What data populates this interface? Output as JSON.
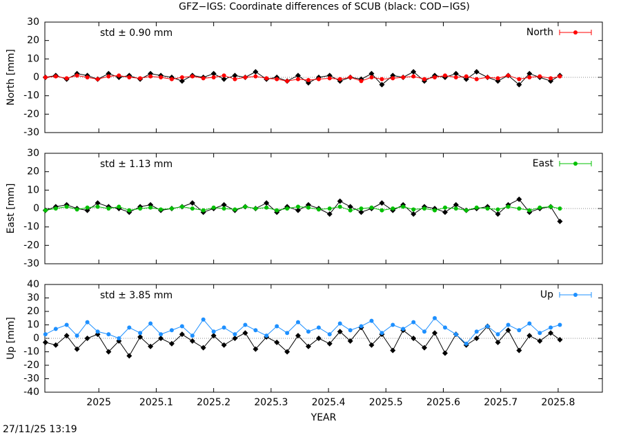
{
  "title": "GFZ−IGS: Coordinate differences of SCUB (black: COD−IGS)",
  "footer": "27/11/25 13:19",
  "chart_data": [
    {
      "type": "line",
      "ylabel": "North [mm]",
      "annotation": "std ± 0.90 mm",
      "xlim": [
        2024.906,
        2025.877
      ],
      "xticks": [
        2025,
        2025.1,
        2025.2,
        2025.3,
        2025.4,
        2025.5,
        2025.6,
        2025.7,
        2025.8
      ],
      "ylim": [
        -30,
        30
      ],
      "yticks": [
        -30,
        -20,
        -10,
        0,
        10,
        20,
        30
      ],
      "legend": "top-right",
      "x": [
        2024.907,
        2024.925,
        2024.944,
        2024.962,
        2024.98,
        2024.998,
        2025.017,
        2025.035,
        2025.053,
        2025.072,
        2025.09,
        2025.108,
        2025.127,
        2025.145,
        2025.163,
        2025.182,
        2025.2,
        2025.218,
        2025.237,
        2025.255,
        2025.273,
        2025.292,
        2025.31,
        2025.328,
        2025.347,
        2025.365,
        2025.383,
        2025.402,
        2025.42,
        2025.438,
        2025.457,
        2025.475,
        2025.493,
        2025.512,
        2025.53,
        2025.548,
        2025.567,
        2025.585,
        2025.603,
        2025.622,
        2025.64,
        2025.658,
        2025.677,
        2025.695,
        2025.713,
        2025.732,
        2025.75,
        2025.768,
        2025.787,
        2025.803
      ],
      "series": [
        {
          "color": "#000000",
          "marker": "diamond",
          "values": [
            0,
            1,
            -1,
            2,
            1,
            -1,
            2,
            0,
            1,
            -1,
            2,
            1,
            0,
            -2,
            1,
            0,
            2,
            -1,
            1,
            0,
            3,
            -1,
            0,
            -2,
            1,
            -3,
            0,
            1,
            -2,
            0,
            -1,
            2,
            -4,
            1,
            0,
            3,
            -2,
            1,
            0,
            2,
            -1,
            3,
            0,
            -2,
            1,
            -4,
            2,
            0,
            -2,
            1
          ]
        },
        {
          "name": "North",
          "color": "#ff0000",
          "marker": "circle",
          "values": [
            0,
            0.5,
            -0.5,
            1,
            0,
            -1,
            0.5,
            1,
            0,
            -0.5,
            0.5,
            0,
            -1,
            0,
            0.5,
            -0.5,
            0,
            1,
            -1,
            0,
            0.5,
            -0.5,
            -1,
            -2,
            -1,
            -1.5,
            -1,
            -0.5,
            -1,
            0,
            -2,
            0,
            -1,
            -0.5,
            0,
            0.5,
            -1,
            0,
            1,
            0,
            0.5,
            -1,
            0,
            -0.5,
            1,
            -1,
            0,
            0.5,
            -0.5,
            0.5
          ]
        }
      ]
    },
    {
      "type": "line",
      "ylabel": "East [mm]",
      "annotation": "std ± 1.13 mm",
      "xlim": [
        2024.906,
        2025.877
      ],
      "xticks": [
        2025,
        2025.1,
        2025.2,
        2025.3,
        2025.4,
        2025.5,
        2025.6,
        2025.7,
        2025.8
      ],
      "ylim": [
        -30,
        30
      ],
      "yticks": [
        -30,
        -20,
        -10,
        0,
        10,
        20,
        30
      ],
      "legend": "top-right",
      "x": [
        2024.907,
        2024.925,
        2024.944,
        2024.962,
        2024.98,
        2024.998,
        2025.017,
        2025.035,
        2025.053,
        2025.072,
        2025.09,
        2025.108,
        2025.127,
        2025.145,
        2025.163,
        2025.182,
        2025.2,
        2025.218,
        2025.237,
        2025.255,
        2025.273,
        2025.292,
        2025.31,
        2025.328,
        2025.347,
        2025.365,
        2025.383,
        2025.402,
        2025.42,
        2025.438,
        2025.457,
        2025.475,
        2025.493,
        2025.512,
        2025.53,
        2025.548,
        2025.567,
        2025.585,
        2025.603,
        2025.622,
        2025.64,
        2025.658,
        2025.677,
        2025.695,
        2025.713,
        2025.732,
        2025.75,
        2025.768,
        2025.787,
        2025.803
      ],
      "series": [
        {
          "color": "#000000",
          "marker": "diamond",
          "values": [
            -1,
            1,
            2,
            0,
            -1,
            3,
            1,
            0,
            -2,
            1,
            2,
            -1,
            0,
            1,
            3,
            -2,
            0,
            2,
            -1,
            1,
            0,
            3,
            -2,
            1,
            -1,
            2,
            0,
            -3,
            4,
            1,
            -2,
            0,
            3,
            -1,
            2,
            -3,
            1,
            0,
            -2,
            2,
            -1,
            0,
            1,
            -3,
            2,
            5,
            -2,
            0,
            1,
            -7
          ]
        },
        {
          "name": "East",
          "color": "#00c000",
          "marker": "circle",
          "values": [
            -1,
            0,
            1,
            -0.5,
            0.5,
            1,
            0,
            1,
            -1,
            0,
            0.5,
            -0.5,
            0,
            1,
            0,
            -1,
            0.5,
            0,
            -0.5,
            1,
            0,
            0.5,
            -1,
            0,
            1,
            0.5,
            -0.5,
            0,
            1,
            -1,
            0,
            0.5,
            -1,
            0,
            1,
            -0.5,
            0,
            -1,
            0.5,
            0,
            -1,
            0.5,
            0,
            -0.5,
            1,
            0,
            -1,
            0.5,
            1,
            0
          ]
        }
      ]
    },
    {
      "type": "line",
      "ylabel": "Up [mm]",
      "xlabel": "YEAR",
      "annotation": "std ± 3.85 mm",
      "xlim": [
        2024.906,
        2025.877
      ],
      "xticks": [
        2025,
        2025.1,
        2025.2,
        2025.3,
        2025.4,
        2025.5,
        2025.6,
        2025.7,
        2025.8
      ],
      "ylim": [
        -40,
        40
      ],
      "yticks": [
        -40,
        -30,
        -20,
        -10,
        0,
        10,
        20,
        30,
        40
      ],
      "legend": "top-right",
      "x": [
        2024.907,
        2024.925,
        2024.944,
        2024.962,
        2024.98,
        2024.998,
        2025.017,
        2025.035,
        2025.053,
        2025.072,
        2025.09,
        2025.108,
        2025.127,
        2025.145,
        2025.163,
        2025.182,
        2025.2,
        2025.218,
        2025.237,
        2025.255,
        2025.273,
        2025.292,
        2025.31,
        2025.328,
        2025.347,
        2025.365,
        2025.383,
        2025.402,
        2025.42,
        2025.438,
        2025.457,
        2025.475,
        2025.493,
        2025.512,
        2025.53,
        2025.548,
        2025.567,
        2025.585,
        2025.603,
        2025.622,
        2025.64,
        2025.658,
        2025.677,
        2025.695,
        2025.713,
        2025.732,
        2025.75,
        2025.768,
        2025.787,
        2025.803
      ],
      "series": [
        {
          "color": "#000000",
          "marker": "diamond",
          "values": [
            -3,
            -5,
            2,
            -8,
            0,
            3,
            -10,
            -2,
            -13,
            1,
            -6,
            0,
            -4,
            3,
            -2,
            -7,
            2,
            -5,
            0,
            4,
            -8,
            1,
            -3,
            -10,
            2,
            -6,
            0,
            -4,
            5,
            -2,
            8,
            -5,
            3,
            -9,
            6,
            0,
            -7,
            4,
            -11,
            3,
            -5,
            0,
            9,
            -3,
            6,
            -9,
            2,
            -2,
            4,
            -1
          ]
        },
        {
          "name": "Up",
          "color": "#1e90ff",
          "marker": "circle",
          "values": [
            3,
            7,
            10,
            2,
            12,
            5,
            3,
            0,
            8,
            4,
            11,
            3,
            6,
            9,
            2,
            14,
            5,
            8,
            3,
            10,
            6,
            2,
            9,
            4,
            12,
            5,
            8,
            3,
            11,
            6,
            9,
            13,
            4,
            10,
            7,
            12,
            5,
            15,
            8,
            3,
            -4,
            5,
            9,
            3,
            10,
            6,
            11,
            4,
            8,
            10
          ]
        }
      ]
    }
  ]
}
